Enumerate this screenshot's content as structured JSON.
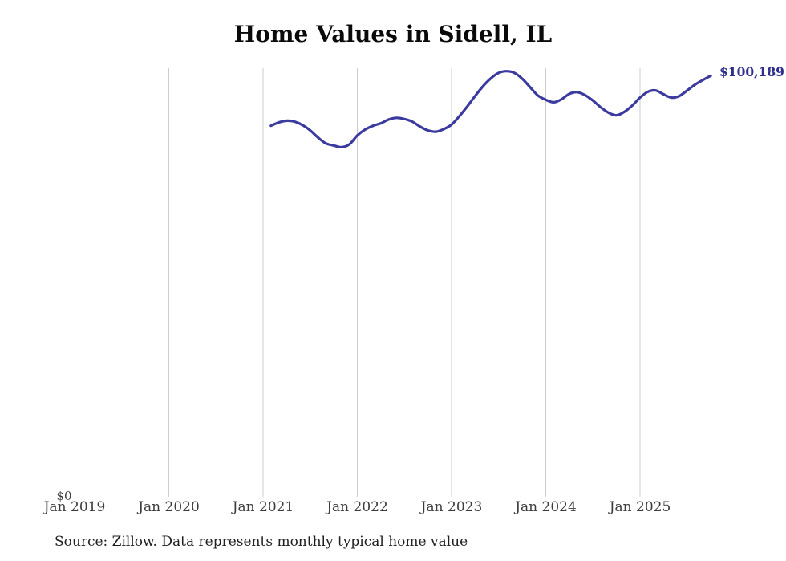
{
  "title": "Home Values in Sidell, IL",
  "source_note": "Source: Zillow. Data represents monthly typical home value",
  "y_axis": {
    "zero_label": "$0"
  },
  "x_axis": {
    "tick_labels": [
      "Jan 2019",
      "Jan 2020",
      "Jan 2021",
      "Jan 2022",
      "Jan 2023",
      "Jan 2024",
      "Jan 2025"
    ]
  },
  "latest": {
    "label": "$100,189",
    "value": 100189
  },
  "colors": {
    "line": "#3b3b9f",
    "end_label": "#2e2e8b",
    "gridline": "#cccccc",
    "axis_text": "#3c3c3c",
    "title_text": "#0a0a0a",
    "source_text": "#1f1f1f"
  },
  "chart_data": {
    "type": "line",
    "title": "Home Values in Sidell, IL",
    "series_name": "Monthly typical home value (USD)",
    "unit": "USD",
    "x": [
      "2021-02",
      "2021-03",
      "2021-04",
      "2021-05",
      "2021-06",
      "2021-07",
      "2021-08",
      "2021-09",
      "2021-10",
      "2021-11",
      "2021-12",
      "2022-01",
      "2022-02",
      "2022-03",
      "2022-04",
      "2022-05",
      "2022-06",
      "2022-07",
      "2022-08",
      "2022-09",
      "2022-10",
      "2022-11",
      "2022-12",
      "2023-01",
      "2023-02",
      "2023-03",
      "2023-04",
      "2023-05",
      "2023-06",
      "2023-07",
      "2023-08",
      "2023-09",
      "2023-10",
      "2023-11",
      "2023-12",
      "2024-01",
      "2024-02",
      "2024-03",
      "2024-04",
      "2024-05",
      "2024-06",
      "2024-07",
      "2024-08",
      "2024-09",
      "2024-10",
      "2024-11",
      "2024-12",
      "2025-01",
      "2025-02",
      "2025-03",
      "2025-04",
      "2025-05",
      "2025-06",
      "2025-07",
      "2025-08",
      "2025-09",
      "2025-10"
    ],
    "values": [
      88300,
      89100,
      89500,
      89300,
      88500,
      87200,
      85500,
      84100,
      83600,
      83200,
      83900,
      86000,
      87400,
      88300,
      88900,
      89800,
      90200,
      89900,
      89300,
      88100,
      87200,
      86900,
      87500,
      88600,
      90600,
      92900,
      95400,
      97700,
      99600,
      100900,
      101300,
      100900,
      99500,
      97500,
      95500,
      94500,
      93900,
      94600,
      95900,
      96300,
      95600,
      94300,
      92700,
      91400,
      90800,
      91600,
      93100,
      95000,
      96400,
      96700,
      95800,
      95000,
      95400,
      96700,
      98100,
      99200,
      100189
    ],
    "x_ticks": [
      "Jan 2019",
      "Jan 2020",
      "Jan 2021",
      "Jan 2022",
      "Jan 2023",
      "Jan 2024",
      "Jan 2025"
    ],
    "x_axis_start": "2019-01",
    "ylim": [
      0,
      102000
    ],
    "grid": "vertical-only",
    "gridline_at_first_tick": false,
    "legend": "none",
    "end_point_label": "$100,189"
  }
}
